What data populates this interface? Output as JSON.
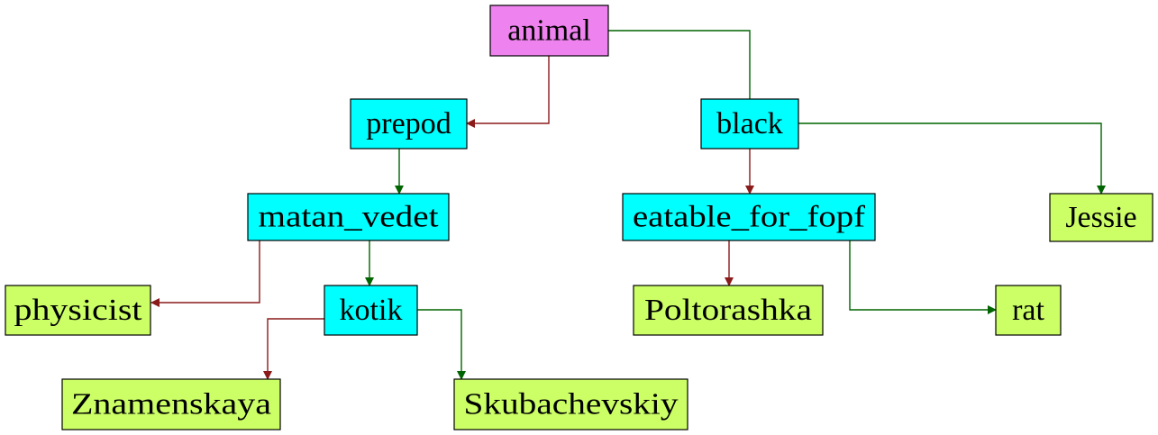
{
  "colors": {
    "root": "#ee82ee",
    "internal": "#00ffff",
    "leaf": "#ccff66",
    "yes_edge": "#006400",
    "no_edge": "#8b1a1a"
  },
  "nodes": {
    "animal": "animal",
    "prepod": "prepod",
    "black": "black",
    "matan_vedet": "matan_vedet",
    "eatable_for_fopf": "eatable_for_fopf",
    "jessie": "Jessie",
    "physicist": "physicist",
    "kotik": "kotik",
    "poltorashka": "Poltorashka",
    "rat": "rat",
    "znamenskaya": "Znamenskaya",
    "skubachevskiy": "Skubachevskiy"
  }
}
